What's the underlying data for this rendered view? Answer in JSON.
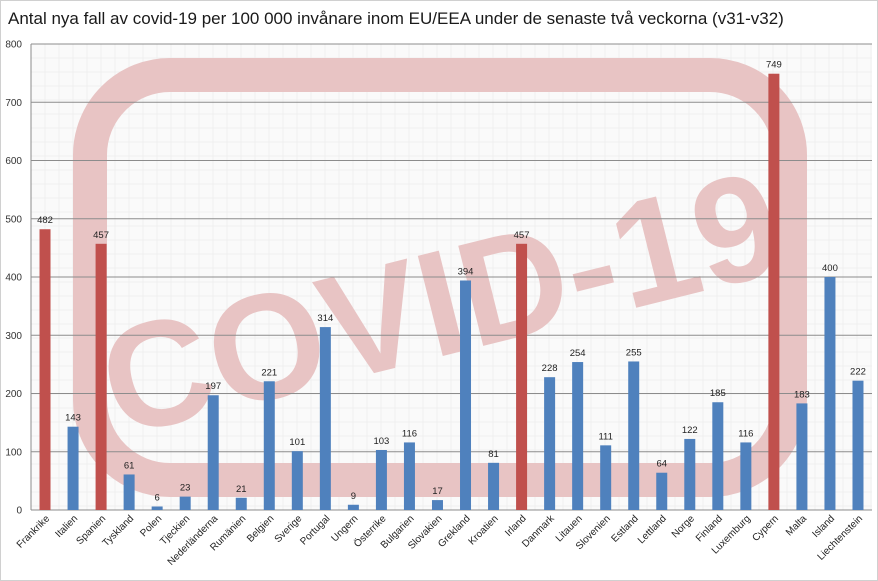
{
  "chart_data": {
    "type": "bar",
    "title": "Antal nya fall av covid-19 per 100 000 invånare inom EU/EEA under de senaste två veckorna (v31-v32)",
    "categories": [
      "Frankrike",
      "Italien",
      "Spanien",
      "Tyskland",
      "Polen",
      "Tjeckien",
      "Nederländerna",
      "Rumänien",
      "Belgien",
      "Sverige",
      "Portugal",
      "Ungern",
      "Österrike",
      "Bulgarien",
      "Slovakien",
      "Grekland",
      "Kroatien",
      "Irland",
      "Danmark",
      "Litauen",
      "Slovenien",
      "Estland",
      "Lettland",
      "Norge",
      "Finland",
      "Luxemburg",
      "Cypern",
      "Malta",
      "Island",
      "Liechtenstein"
    ],
    "values": [
      482,
      143,
      457,
      61,
      6,
      23,
      197,
      21,
      221,
      101,
      314,
      9,
      103,
      116,
      17,
      394,
      81,
      457,
      228,
      254,
      111,
      255,
      64,
      122,
      185,
      116,
      749,
      183,
      400,
      222
    ],
    "bar_colors": [
      "#c0504d",
      "#4f81bd",
      "#c0504d",
      "#4f81bd",
      "#4f81bd",
      "#4f81bd",
      "#4f81bd",
      "#4f81bd",
      "#4f81bd",
      "#4f81bd",
      "#4f81bd",
      "#4f81bd",
      "#4f81bd",
      "#4f81bd",
      "#4f81bd",
      "#4f81bd",
      "#4f81bd",
      "#c0504d",
      "#4f81bd",
      "#4f81bd",
      "#4f81bd",
      "#4f81bd",
      "#4f81bd",
      "#4f81bd",
      "#4f81bd",
      "#4f81bd",
      "#c0504d",
      "#4f81bd",
      "#4f81bd",
      "#4f81bd"
    ],
    "ylim": [
      0,
      800
    ],
    "yticks": [
      0,
      100,
      200,
      300,
      400,
      500,
      600,
      700,
      800
    ],
    "xlabel": "",
    "ylabel": "",
    "grid": true,
    "legend": "none"
  },
  "watermark": {
    "text": "COVID-19",
    "color": "#e8c4c4"
  }
}
